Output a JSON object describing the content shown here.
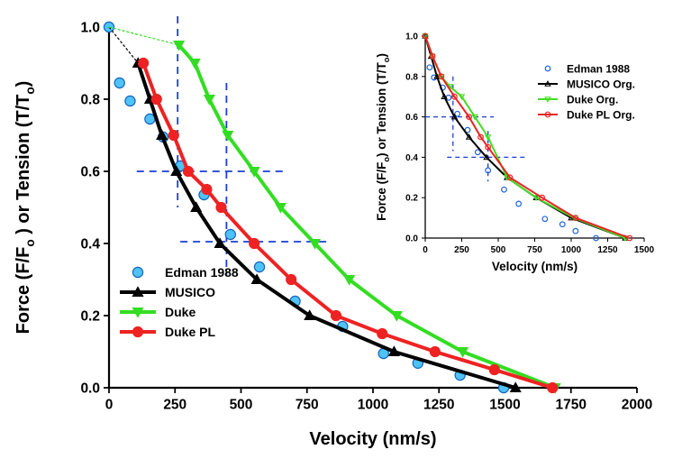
{
  "chart_data": [
    {
      "type": "line",
      "xlabel": "Velocity (nm/s)",
      "ylabel_parts": [
        "Force (F/F",
        "o",
        " ) or Tension (T/T",
        "o",
        ")"
      ],
      "xlim": [
        0,
        2000
      ],
      "ylim": [
        0,
        1.0
      ],
      "xticks": [
        0,
        250,
        500,
        750,
        1000,
        1250,
        1500,
        1750,
        2000
      ],
      "yticks": [
        0.0,
        0.2,
        0.4,
        0.6,
        0.8,
        1.0
      ],
      "ytick_labels": [
        "0.0",
        "0.2",
        "0.4",
        "0.6",
        "0.8",
        "1.0"
      ],
      "legend_position": "bottom-left",
      "series": [
        {
          "name": "Edman 1988",
          "color": "#4fc3f7",
          "marker": "circle-open",
          "line": false,
          "x": [
            0,
            40,
            80,
            155,
            205,
            270,
            360,
            460,
            570,
            705,
            885,
            1040,
            1170,
            1330,
            1495
          ],
          "y": [
            1.0,
            0.845,
            0.795,
            0.745,
            0.695,
            0.615,
            0.535,
            0.425,
            0.335,
            0.24,
            0.17,
            0.095,
            0.068,
            0.035,
            0.0
          ]
        },
        {
          "name": "MUSICO",
          "color": "#000000",
          "marker": "triangle-up",
          "line": true,
          "x": [
            110,
            155,
            200,
            255,
            330,
            420,
            560,
            760,
            1080,
            1540
          ],
          "y": [
            0.9,
            0.8,
            0.7,
            0.6,
            0.5,
            0.4,
            0.3,
            0.2,
            0.1,
            0.0
          ]
        },
        {
          "name": "Duke",
          "color": "#33dd22",
          "marker": "triangle-down",
          "line": true,
          "x": [
            265,
            325,
            380,
            450,
            550,
            650,
            780,
            910,
            1090,
            1340,
            1690
          ],
          "y": [
            0.95,
            0.9,
            0.8,
            0.7,
            0.6,
            0.5,
            0.4,
            0.3,
            0.2,
            0.1,
            0.0
          ]
        },
        {
          "name": "Duke PL",
          "color": "#ee2222",
          "marker": "circle",
          "line": true,
          "x": [
            130,
            180,
            245,
            300,
            370,
            425,
            550,
            690,
            860,
            1035,
            1235,
            1460,
            1680
          ],
          "y": [
            0.9,
            0.8,
            0.7,
            0.6,
            0.55,
            0.5,
            0.4,
            0.3,
            0.2,
            0.15,
            0.1,
            0.05,
            0.0
          ]
        }
      ]
    },
    {
      "type": "line",
      "xlabel": "Velocity (nm/s)",
      "ylabel_parts": [
        "Force (F/F",
        "o",
        ") or Tension (T/T",
        "o",
        ")"
      ],
      "xlim": [
        0,
        1500
      ],
      "ylim": [
        0,
        1.0
      ],
      "xticks": [
        0,
        250,
        500,
        750,
        1000,
        1250,
        1500
      ],
      "yticks": [
        0.0,
        0.2,
        0.4,
        0.6,
        0.8,
        1.0
      ],
      "ytick_labels": [
        "0.0",
        "0.2",
        "0.4",
        "0.6",
        "0.8",
        "1.0"
      ],
      "legend_position": "top-right",
      "series": [
        {
          "name": "Edman 1988",
          "color": "#1f63d8",
          "marker": "circle-open",
          "line": false,
          "x": [
            0,
            30,
            60,
            120,
            160,
            220,
            290,
            360,
            430,
            540,
            640,
            820,
            940,
            1030,
            1170
          ],
          "y": [
            1.0,
            0.845,
            0.795,
            0.745,
            0.695,
            0.615,
            0.535,
            0.425,
            0.335,
            0.24,
            0.17,
            0.095,
            0.068,
            0.035,
            0.0
          ]
        },
        {
          "name": "MUSICO Org.",
          "color": "#000000",
          "marker": "triangle-open",
          "line": true,
          "x": [
            0,
            40,
            80,
            130,
            200,
            300,
            420,
            560,
            760,
            1000,
            1370
          ],
          "y": [
            1.0,
            0.9,
            0.8,
            0.7,
            0.6,
            0.5,
            0.4,
            0.3,
            0.2,
            0.1,
            0.0
          ]
        },
        {
          "name": "Duke Org.",
          "color": "#44dd22",
          "marker": "triangle-down-open",
          "line": true,
          "x": [
            0,
            50,
            110,
            170,
            250,
            340,
            430,
            560,
            760,
            1020,
            1370
          ],
          "y": [
            1.0,
            0.9,
            0.8,
            0.75,
            0.7,
            0.6,
            0.5,
            0.3,
            0.2,
            0.1,
            0.0
          ]
        },
        {
          "name": "Duke PL Org.",
          "color": "#ee2222",
          "marker": "circle-open",
          "line": true,
          "x": [
            0,
            50,
            110,
            200,
            300,
            380,
            430,
            580,
            800,
            1030,
            1400
          ],
          "y": [
            1.0,
            0.9,
            0.8,
            0.7,
            0.6,
            0.5,
            0.45,
            0.3,
            0.2,
            0.1,
            0.0
          ]
        }
      ]
    }
  ]
}
